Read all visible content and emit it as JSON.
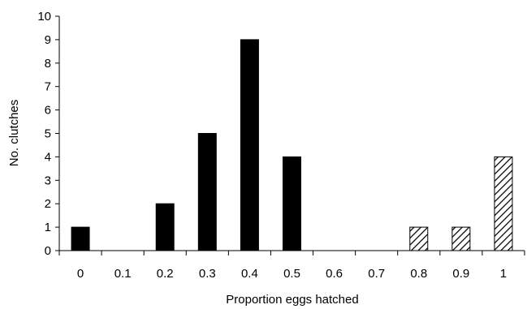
{
  "chart_data": {
    "type": "bar",
    "title": "",
    "xlabel": "Proportion eggs hatched",
    "ylabel": "No. clutches",
    "ylim": [
      0,
      10
    ],
    "y_ticks": [
      "0",
      "1",
      "2",
      "3",
      "4",
      "5",
      "6",
      "7",
      "8",
      "9",
      "10"
    ],
    "categories": [
      "0",
      "0.1",
      "0.2",
      "0.3",
      "0.4",
      "0.5",
      "0.6",
      "0.7",
      "0.8",
      "0.9",
      "1"
    ],
    "values": [
      1,
      0,
      2,
      5,
      9,
      4,
      0,
      0,
      1,
      1,
      4
    ],
    "bar_fill": [
      "solid",
      "solid",
      "solid",
      "solid",
      "solid",
      "solid",
      "solid",
      "solid",
      "hatched",
      "hatched",
      "hatched"
    ],
    "grid": false,
    "legend": "none",
    "colors": {
      "bar": "#000000",
      "hatch": "#000000",
      "background": "#ffffff"
    }
  }
}
